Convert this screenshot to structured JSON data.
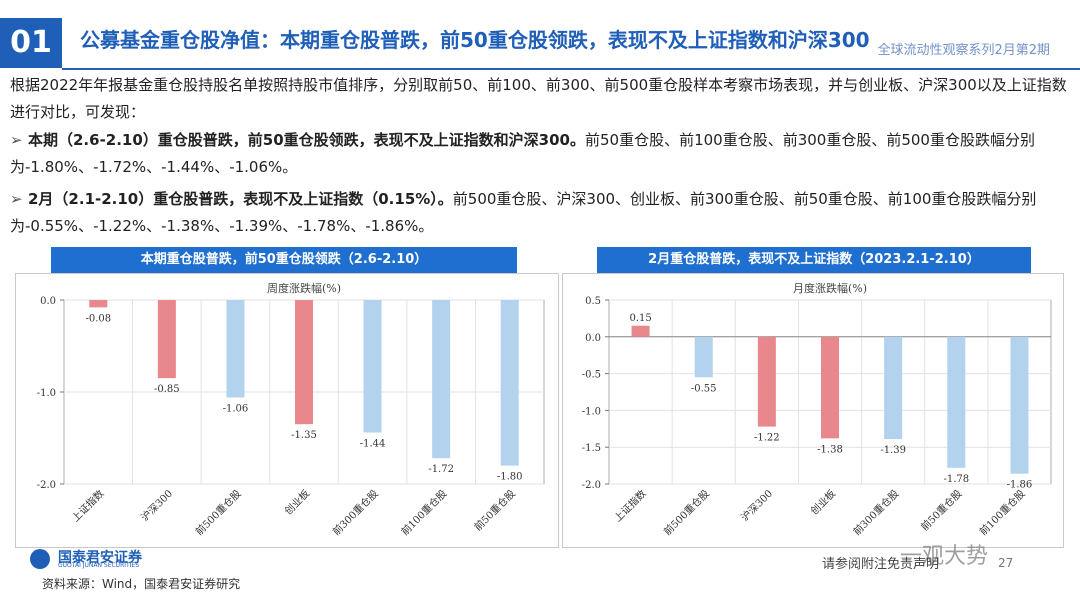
{
  "header": {
    "number": "01",
    "title": "公募基金重仓股净值：本期重仓股普跌，前50重仓股领跌，表现不及上证指数和沪深300",
    "series_tag": "全球流动性观察系列2月第2期",
    "accent_color": "#1f5fb8"
  },
  "body": {
    "intro": "根据2022年年报基金重仓股持股名单按照持股市值排序，分别取前50、前100、前300、前500重仓股样本考察市场表现，并与创业板、沪深300以及上证指数进行对比，可发现：",
    "bullets": [
      {
        "lead": "本期（2.6-2.10）重仓股普跌，前50重仓股领跌，表现不及上证指数和沪深300。",
        "text": "前50重仓股、前100重仓股、前300重仓股、前500重仓股跌幅分别为-1.80%、-1.72%、-1.44%、-1.06%。"
      },
      {
        "lead": "2月（2.1-2.10）重仓股普跌，表现不及上证指数（0.15%）。",
        "text": "前500重仓股、沪深300、创业板、前300重仓股、前50重仓股、前100重仓股跌幅分别为-0.55%、-1.22%、-1.38%、-1.39%、-1.78%、-1.86%。"
      }
    ]
  },
  "panels": [
    {
      "header": "本期重仓股普跌，前50重仓股领跌（2.6-2.10）"
    },
    {
      "header": "2月重仓股普跌，表现不及上证指数（2023.2.1-2.10）"
    }
  ],
  "chart_data": [
    {
      "type": "bar",
      "title": "周度涨跌幅(%)",
      "categories": [
        "上证指数",
        "沪深300",
        "前500重仓股",
        "创业板",
        "前300重仓股",
        "前100重仓股",
        "前50重仓股"
      ],
      "values": [
        -0.08,
        -0.85,
        -1.06,
        -1.35,
        -1.44,
        -1.72,
        -1.8
      ],
      "value_labels": [
        "-0.08",
        "-0.85",
        "-1.06",
        "-1.35",
        "-1.44",
        "-1.72",
        "-1.80"
      ],
      "colors": [
        "#e8888c",
        "#e8888c",
        "#b3d2ee",
        "#e8888c",
        "#b3d2ee",
        "#b3d2ee",
        "#b3d2ee"
      ],
      "ylim": [
        -2.0,
        0.0
      ],
      "yticks": [
        0.0,
        -1.0,
        -2.0
      ],
      "ytick_labels": [
        "0.0",
        "-1.0",
        "-2.0"
      ],
      "grid": true
    },
    {
      "type": "bar",
      "title": "月度涨跌幅(%)",
      "categories": [
        "上证指数",
        "前500重仓股",
        "沪深300",
        "创业板",
        "前300重仓股",
        "前50重仓股",
        "前100重仓股"
      ],
      "values": [
        0.15,
        -0.55,
        -1.22,
        -1.38,
        -1.39,
        -1.78,
        -1.86
      ],
      "value_labels": [
        "0.15",
        "-0.55",
        "-1.22",
        "-1.38",
        "-1.39",
        "-1.78",
        "-1.86"
      ],
      "colors": [
        "#e8888c",
        "#b3d2ee",
        "#e8888c",
        "#e8888c",
        "#b3d2ee",
        "#b3d2ee",
        "#b3d2ee"
      ],
      "ylim": [
        -2.0,
        0.5
      ],
      "yticks": [
        0.5,
        0.0,
        -0.5,
        -1.0,
        -1.5,
        -2.0
      ],
      "ytick_labels": [
        "0.5",
        "0.0",
        "-0.5",
        "-1.0",
        "-1.5",
        "-2.0"
      ],
      "grid": true
    }
  ],
  "footer": {
    "logo_cn": "国泰君安证券",
    "logo_en": "GUOTAI JUNAN SECURITIES",
    "source": "资料来源：Wind，国泰君安证券研究",
    "disclaimer": "请参阅附注免责声明",
    "page": "27",
    "watermark": "一观大势"
  }
}
